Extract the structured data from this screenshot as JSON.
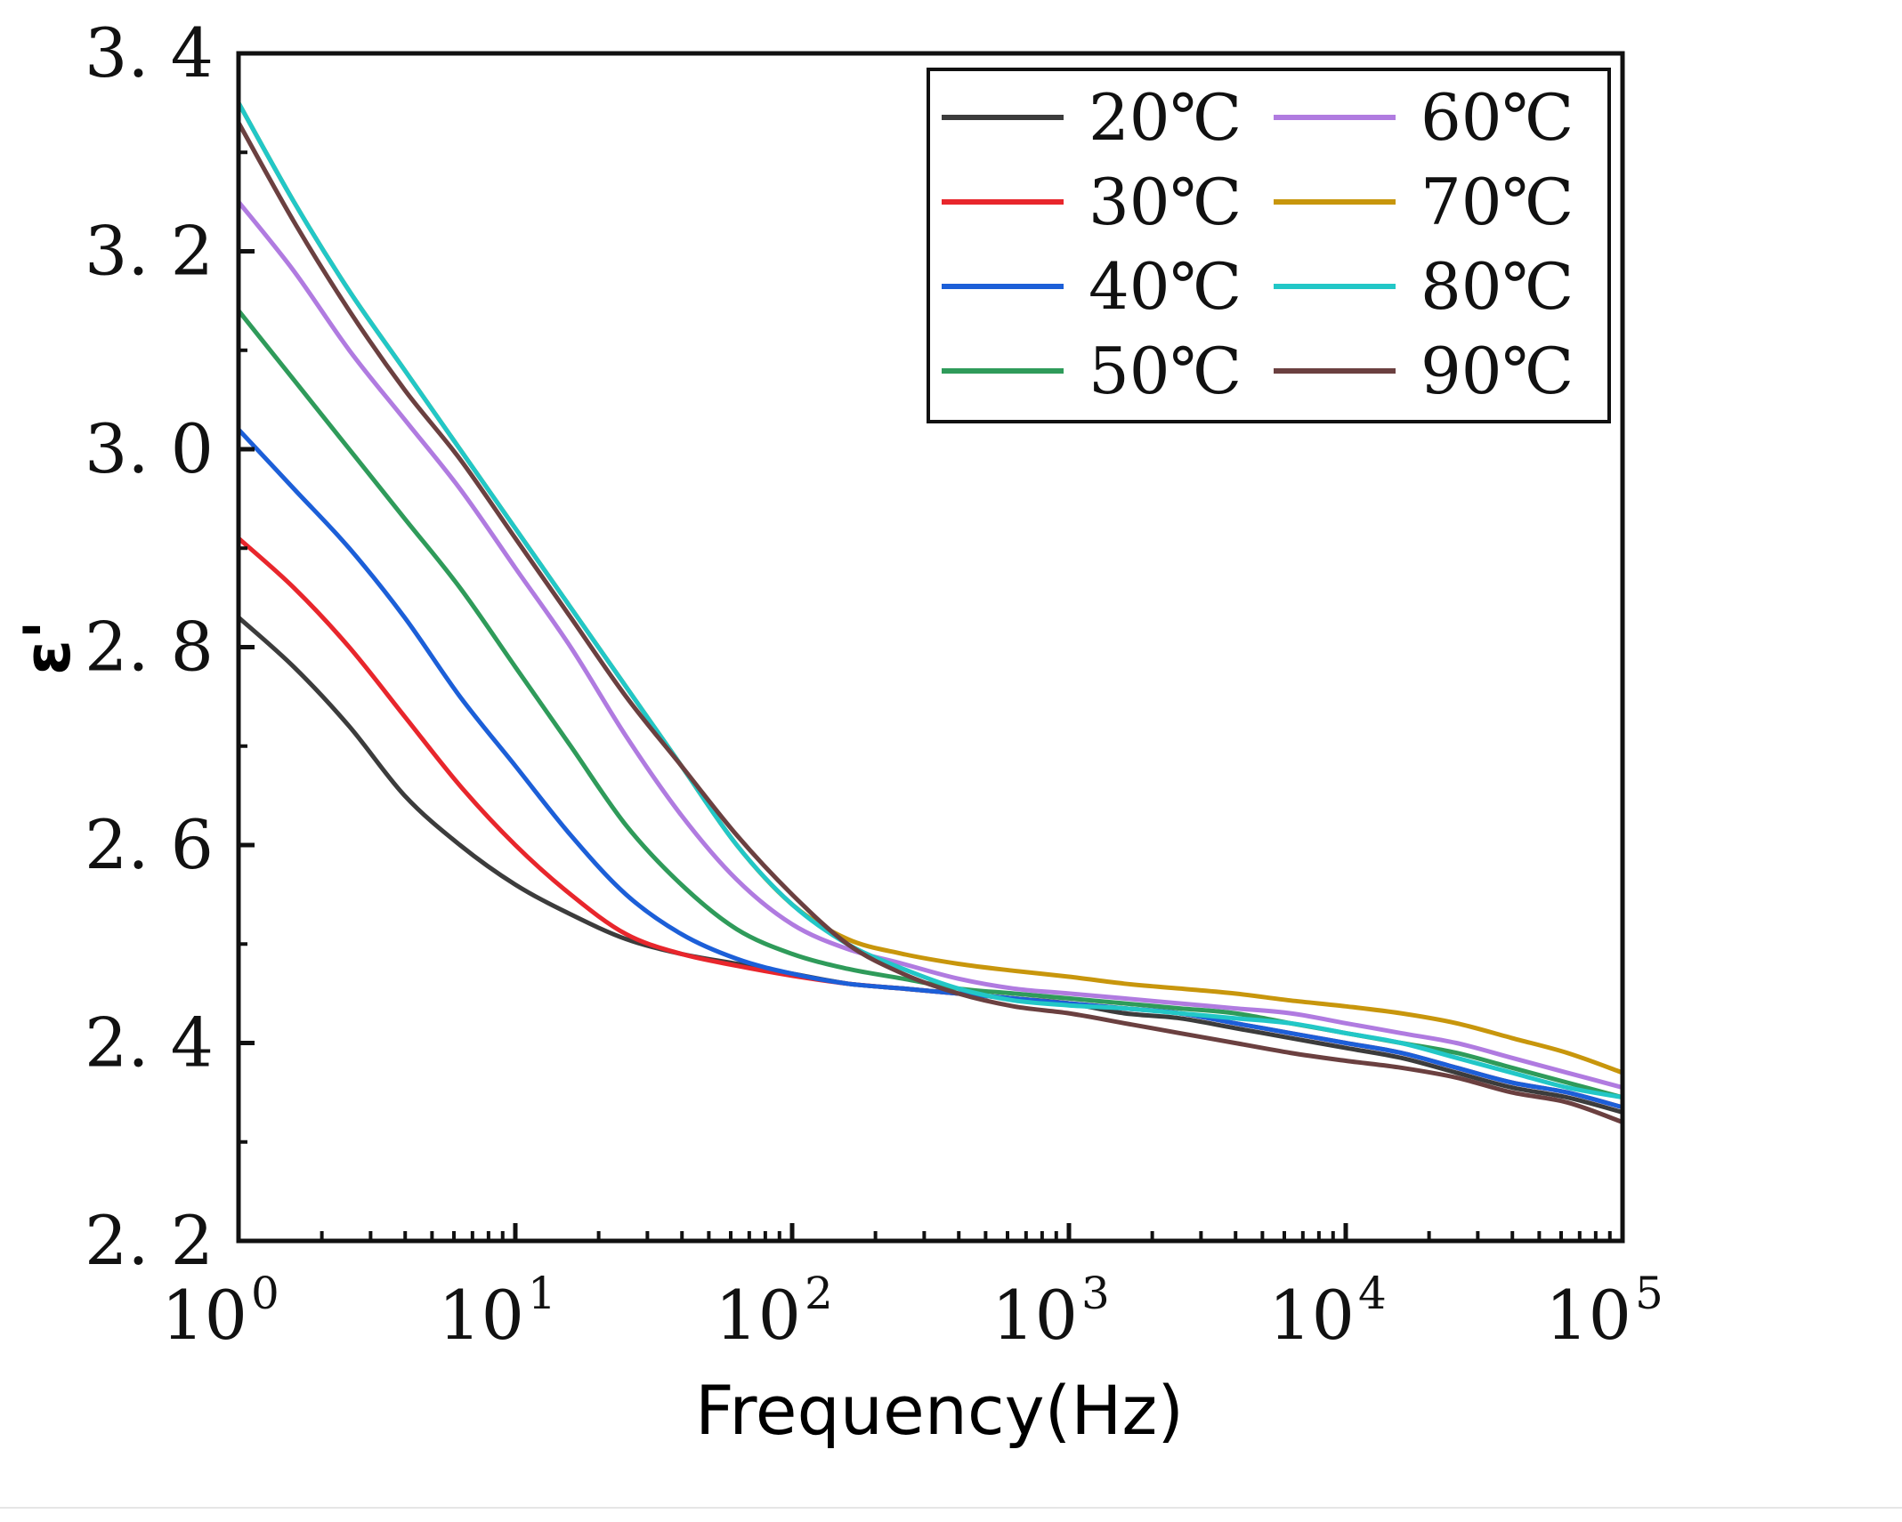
{
  "chart_data": {
    "type": "line",
    "xlabel": "Frequency(Hz)",
    "ylabel": "ε'",
    "xscale": "log",
    "xlim": [
      1,
      100000
    ],
    "ylim": [
      2.2,
      3.4
    ],
    "x_ticks": [
      {
        "base": "10",
        "exp": "0"
      },
      {
        "base": "10",
        "exp": "1"
      },
      {
        "base": "10",
        "exp": "2"
      },
      {
        "base": "10",
        "exp": "3"
      },
      {
        "base": "10",
        "exp": "4"
      },
      {
        "base": "10",
        "exp": "5"
      }
    ],
    "y_ticks": [
      "2. 2",
      "2. 4",
      "2. 6",
      "2. 8",
      "3. 0",
      "3. 2",
      "3. 4"
    ],
    "legend_position": "top-right",
    "grid": false,
    "x": [
      1,
      1.585,
      2.512,
      3.981,
      6.31,
      10,
      15.85,
      25.12,
      39.81,
      63.1,
      100,
      158.5,
      251.2,
      398.1,
      631,
      1000,
      1585,
      2512,
      3981,
      6310,
      10000,
      15850,
      25120,
      39810,
      63100,
      100000
    ],
    "series": [
      {
        "name": "20℃",
        "color": "#3c3c3c",
        "values": [
          2.83,
          2.78,
          2.72,
          2.65,
          2.6,
          2.56,
          2.53,
          2.505,
          2.49,
          2.48,
          2.47,
          2.46,
          2.455,
          2.45,
          2.445,
          2.44,
          2.43,
          2.425,
          2.415,
          2.405,
          2.395,
          2.385,
          2.37,
          2.355,
          2.345,
          2.33
        ]
      },
      {
        "name": "30℃",
        "color": "#e8262c",
        "values": [
          2.91,
          2.86,
          2.8,
          2.73,
          2.66,
          2.6,
          2.55,
          2.51,
          2.49,
          2.478,
          2.468,
          2.46,
          2.455,
          2.45,
          2.445,
          2.44,
          2.435,
          2.43,
          2.42,
          2.41,
          2.4,
          2.39,
          2.375,
          2.36,
          2.35,
          2.335
        ]
      },
      {
        "name": "40℃",
        "color": "#1c5fd8",
        "values": [
          3.02,
          2.96,
          2.9,
          2.83,
          2.75,
          2.68,
          2.61,
          2.55,
          2.51,
          2.485,
          2.47,
          2.46,
          2.455,
          2.45,
          2.445,
          2.44,
          2.435,
          2.43,
          2.42,
          2.41,
          2.4,
          2.39,
          2.375,
          2.36,
          2.35,
          2.335
        ]
      },
      {
        "name": "50℃",
        "color": "#2f9b5a",
        "values": [
          3.14,
          3.07,
          3.0,
          2.93,
          2.86,
          2.78,
          2.7,
          2.62,
          2.56,
          2.515,
          2.49,
          2.475,
          2.465,
          2.455,
          2.45,
          2.445,
          2.44,
          2.435,
          2.43,
          2.42,
          2.41,
          2.4,
          2.39,
          2.375,
          2.36,
          2.345
        ]
      },
      {
        "name": "60℃",
        "color": "#b07be0",
        "values": [
          3.25,
          3.18,
          3.1,
          3.03,
          2.96,
          2.88,
          2.8,
          2.71,
          2.63,
          2.565,
          2.52,
          2.495,
          2.48,
          2.465,
          2.455,
          2.45,
          2.445,
          2.44,
          2.435,
          2.43,
          2.42,
          2.41,
          2.4,
          2.385,
          2.37,
          2.355
        ]
      },
      {
        "name": "70℃",
        "color": "#c8960c",
        "values": [
          3.35,
          3.25,
          3.16,
          3.08,
          3.0,
          2.92,
          2.84,
          2.76,
          2.68,
          2.6,
          2.54,
          2.505,
          2.49,
          2.48,
          2.473,
          2.467,
          2.46,
          2.455,
          2.45,
          2.443,
          2.437,
          2.43,
          2.42,
          2.405,
          2.39,
          2.37
        ]
      },
      {
        "name": "80℃",
        "color": "#22c7c7",
        "values": [
          3.35,
          3.25,
          3.16,
          3.08,
          3.0,
          2.92,
          2.84,
          2.76,
          2.68,
          2.6,
          2.54,
          2.5,
          2.475,
          2.455,
          2.443,
          2.438,
          2.435,
          2.43,
          2.425,
          2.42,
          2.41,
          2.4,
          2.385,
          2.37,
          2.355,
          2.345
        ]
      },
      {
        "name": "90℃",
        "color": "#6b4040",
        "values": [
          3.33,
          3.23,
          3.14,
          3.06,
          2.99,
          2.91,
          2.83,
          2.75,
          2.68,
          2.61,
          2.55,
          2.5,
          2.47,
          2.45,
          2.437,
          2.43,
          2.42,
          2.41,
          2.4,
          2.39,
          2.382,
          2.375,
          2.365,
          2.35,
          2.34,
          2.32
        ]
      }
    ]
  }
}
